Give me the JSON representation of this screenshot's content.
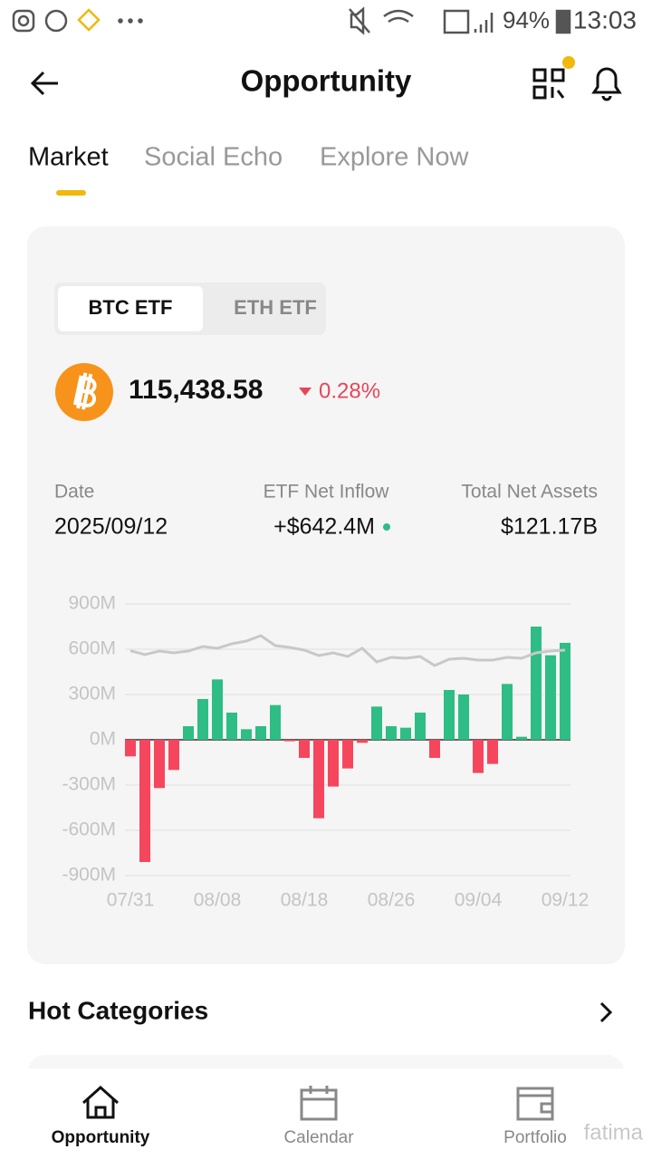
{
  "status_bar": {
    "battery": "94%",
    "time": "13:03"
  },
  "header": {
    "title": "Opportunity"
  },
  "tabs": [
    "Market",
    "Social Echo",
    "Explore Now"
  ],
  "toggle": [
    "BTC ETF",
    "ETH ETF"
  ],
  "price": {
    "value": "115,438.58",
    "change": "0.28%"
  },
  "stats": [
    {
      "label": "Date",
      "value": "2025/09/12"
    },
    {
      "label": "ETF Net Inflow",
      "value": "+$642.4M"
    },
    {
      "label": "Total Net Assets",
      "value": "$121.17B"
    }
  ],
  "chart_data": {
    "type": "bar",
    "categories": [
      "07/31",
      null,
      null,
      null,
      null,
      null,
      "08/08",
      null,
      null,
      null,
      null,
      null,
      "08/18",
      null,
      null,
      null,
      null,
      null,
      "08/26",
      null,
      null,
      null,
      null,
      null,
      "09/04",
      null,
      null,
      null,
      null,
      null,
      "09/12"
    ],
    "series": [
      {
        "type": "bar",
        "positive_color": "#2ebd85",
        "negative_color": "#f6465d",
        "values": [
          -110,
          -810,
          -320,
          -200,
          90,
          270,
          400,
          180,
          70,
          90,
          230,
          -10,
          -120,
          -520,
          -310,
          -190,
          -20,
          220,
          90,
          80,
          180,
          -120,
          330,
          300,
          -220,
          -160,
          370,
          20,
          750,
          560,
          642.4
        ]
      },
      {
        "type": "line",
        "color": "#c8c8c8",
        "values": [
          590,
          564,
          588,
          576,
          588,
          618,
          606,
          636,
          654,
          690,
          624,
          612,
          594,
          558,
          576,
          552,
          606,
          516,
          546,
          540,
          552,
          492,
          534,
          540,
          528,
          528,
          546,
          540,
          576,
          588,
          594
        ]
      }
    ],
    "ylim": [
      -900,
      900
    ],
    "yticks": [
      {
        "value": -900,
        "label": "-900M"
      },
      {
        "value": -600,
        "label": "-600M"
      },
      {
        "value": -300,
        "label": "-300M"
      },
      {
        "value": 0,
        "label": "0M"
      },
      {
        "value": 300,
        "label": "300M"
      },
      {
        "value": 600,
        "label": "600M"
      },
      {
        "value": 900,
        "label": "900M"
      }
    ],
    "grid": true
  },
  "section": {
    "title": "Hot Categories"
  },
  "nav": [
    "Opportunity",
    "Calendar",
    "Portfolio"
  ],
  "watermark": "fatima"
}
